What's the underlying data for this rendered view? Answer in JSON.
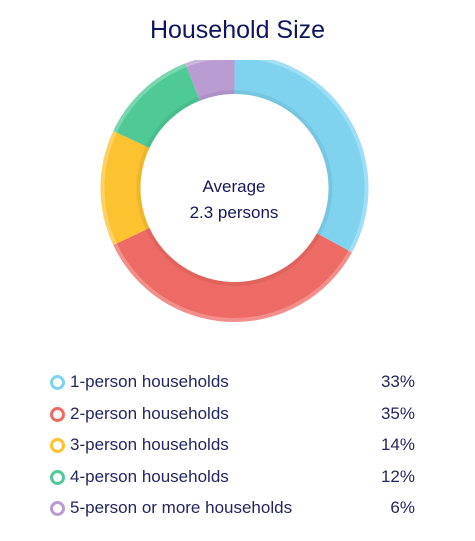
{
  "chart_data": {
    "type": "pie",
    "title": "Household Size",
    "center_label": [
      "Average",
      "2.3 persons"
    ],
    "categories": [
      "1-person households",
      "2-person households",
      "3-person households",
      "4-person households",
      "5-person or more households"
    ],
    "values": [
      33,
      35,
      14,
      12,
      6
    ],
    "value_labels": [
      "33%",
      "35%",
      "14%",
      "12%",
      "6%"
    ],
    "colors": [
      "#7fd3ef",
      "#ee6a64",
      "#fdc22f",
      "#4fc996",
      "#b99cd2"
    ],
    "legend_position": "bottom"
  }
}
